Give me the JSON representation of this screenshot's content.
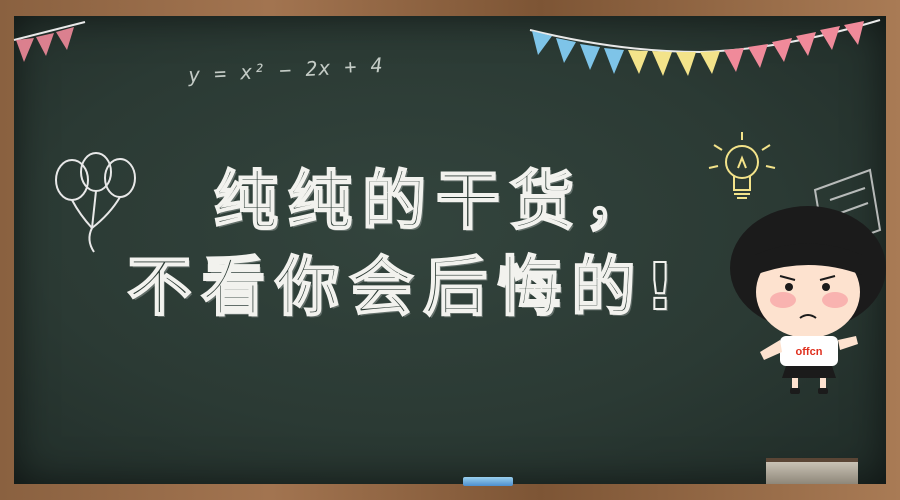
{
  "image": {
    "formula": "y = x² − 2x + 4",
    "headline_line1": "纯纯的干货，",
    "headline_line2": "不看你会后悔的!",
    "shirt_logo": "offcn"
  },
  "colors": {
    "board": "#2b3a34",
    "frame": "#8a6140",
    "chalk": "#f2f2ee",
    "flag_pink": "#f08a9a",
    "flag_blue": "#7ec4e8",
    "flag_yellow": "#f3e38a"
  },
  "icons": [
    "balloons-icon",
    "lightbulb-icon",
    "bunting-left",
    "bunting-right",
    "cartoon-girl",
    "eraser",
    "chalk-stick"
  ]
}
